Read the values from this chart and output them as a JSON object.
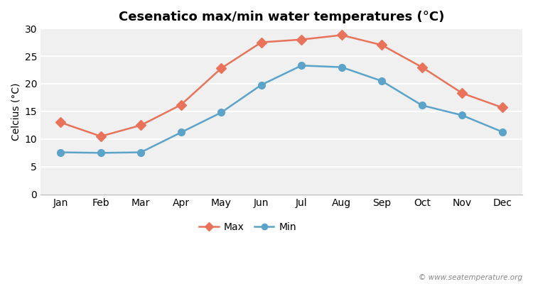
{
  "title": "Cesenatico max/min water temperatures (°C)",
  "ylabel": "Celcius (°C)",
  "months": [
    "Jan",
    "Feb",
    "Mar",
    "Apr",
    "May",
    "Jun",
    "Jul",
    "Aug",
    "Sep",
    "Oct",
    "Nov",
    "Dec"
  ],
  "max_values": [
    13.0,
    10.5,
    12.5,
    16.2,
    22.8,
    27.5,
    28.0,
    28.8,
    27.0,
    23.0,
    18.3,
    15.7
  ],
  "min_values": [
    7.6,
    7.5,
    7.6,
    11.2,
    14.8,
    19.8,
    23.3,
    23.0,
    20.5,
    16.1,
    14.3,
    11.3
  ],
  "max_color": "#E8735A",
  "min_color": "#5BA3C9",
  "fig_bg_color": "#ffffff",
  "plot_bg_color": "#f0f0f0",
  "grid_color": "#ffffff",
  "spine_color": "#bbbbbb",
  "ylim": [
    0,
    30
  ],
  "yticks": [
    0,
    5,
    10,
    15,
    20,
    25,
    30
  ],
  "watermark": "© www.seatemperature.org",
  "legend_labels": [
    "Max",
    "Min"
  ],
  "title_fontsize": 13,
  "axis_fontsize": 10,
  "tick_fontsize": 10
}
